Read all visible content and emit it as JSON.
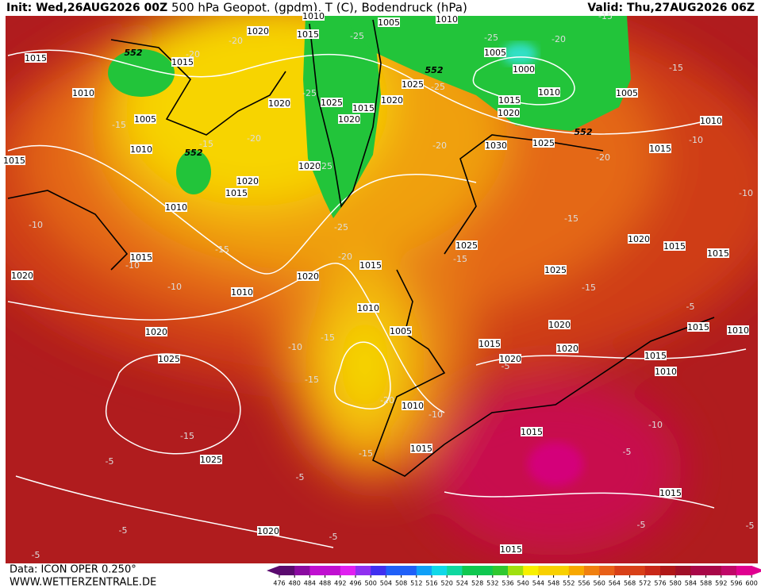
{
  "header": {
    "init": "Init: Wed,26AUG2026 00Z",
    "title": "500 hPa Geopot. (gpdm), T (C), Bodendruck (hPa)",
    "valid": "Valid: Thu,27AUG2026 06Z"
  },
  "footer": {
    "source": "Data: ICON OPER 0.250°",
    "site": "WWW.WETTERZENTRALE.DE"
  },
  "colorbar": {
    "ticks": [
      476,
      480,
      484,
      488,
      492,
      496,
      500,
      504,
      508,
      512,
      516,
      520,
      524,
      528,
      532,
      536,
      540,
      544,
      548,
      552,
      556,
      560,
      564,
      568,
      572,
      576,
      580,
      584,
      588,
      592,
      596,
      600
    ]
  },
  "labels": {
    "isobars": [
      "1015",
      "1010",
      "1005",
      "1010",
      "1015",
      "1010",
      "1015",
      "1020",
      "1020",
      "1015",
      "1020",
      "1025",
      "1015",
      "1020",
      "1020",
      "1020",
      "1015",
      "1010",
      "1005",
      "1010",
      "1025",
      "1020",
      "1005",
      "1000",
      "1010",
      "1015",
      "1020",
      "1005",
      "1030",
      "1025",
      "1015",
      "1010",
      "1025",
      "1025",
      "1020",
      "1015",
      "1015",
      "1020",
      "1015",
      "1010",
      "1010",
      "1005",
      "1020",
      "1025",
      "1015",
      "1020",
      "1020",
      "1020",
      "1015",
      "1010",
      "1015",
      "1010",
      "1010",
      "1015",
      "1015",
      "1025",
      "1015",
      "1020",
      "1015",
      "1015"
    ],
    "temperatures": [
      "-15",
      "-15",
      "-20",
      "-25",
      "-25",
      "-25",
      "-25",
      "-20",
      "-20",
      "-15",
      "-10",
      "-10",
      "-10",
      "-25",
      "-25",
      "-20",
      "-15",
      "-15",
      "-10",
      "-20",
      "-15",
      "-15",
      "-15",
      "-10",
      "-15",
      "-10",
      "-15",
      "-15",
      "-20",
      "-10",
      "-15",
      "-5",
      "-5",
      "-5",
      "-5",
      "-5",
      "-5",
      "-10",
      "-5",
      "-5",
      "-5",
      "-5",
      "-20",
      "-20"
    ],
    "heights": [
      "552",
      "552",
      "552",
      "552"
    ]
  }
}
